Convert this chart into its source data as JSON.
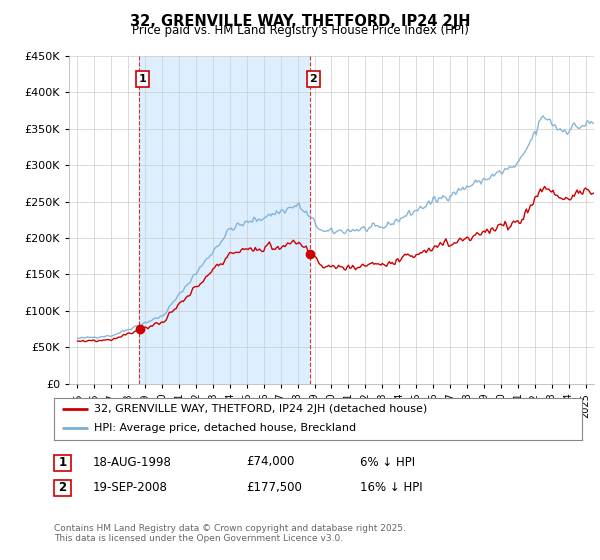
{
  "title": "32, GRENVILLE WAY, THETFORD, IP24 2JH",
  "subtitle": "Price paid vs. HM Land Registry's House Price Index (HPI)",
  "legend_line1": "32, GRENVILLE WAY, THETFORD, IP24 2JH (detached house)",
  "legend_line2": "HPI: Average price, detached house, Breckland",
  "annotation1_date": "18-AUG-1998",
  "annotation1_price": "£74,000",
  "annotation1_hpi": "6% ↓ HPI",
  "annotation2_date": "19-SEP-2008",
  "annotation2_price": "£177,500",
  "annotation2_hpi": "16% ↓ HPI",
  "footer": "Contains HM Land Registry data © Crown copyright and database right 2025.\nThis data is licensed under the Open Government Licence v3.0.",
  "price_color": "#cc0000",
  "hpi_color": "#7aafd4",
  "shade_color": "#ddeeff",
  "background_color": "#ffffff",
  "ylim": [
    0,
    450000
  ],
  "ytick_vals": [
    0,
    50000,
    100000,
    150000,
    200000,
    250000,
    300000,
    350000,
    400000,
    450000
  ],
  "ytick_labels": [
    "£0",
    "£50K",
    "£100K",
    "£150K",
    "£200K",
    "£250K",
    "£300K",
    "£350K",
    "£400K",
    "£450K"
  ],
  "purchase1_x": 1998.63,
  "purchase1_y": 74000,
  "purchase2_x": 2008.72,
  "purchase2_y": 177500,
  "xmin": 1994.5,
  "xmax": 2025.5
}
